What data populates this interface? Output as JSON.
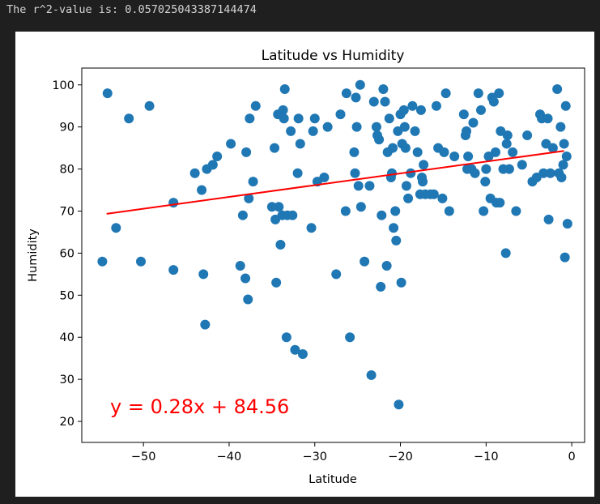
{
  "output": {
    "text": "The r^2-value is: 0.057025043387144474"
  },
  "colors": {
    "background": "#1f1f1f",
    "figure": "#ffffff",
    "points": "#1f77b4",
    "regression_line": "#ff0000",
    "equation": "#ff0000"
  },
  "chart_data": {
    "type": "scatter",
    "title": "Latitude vs Humidity",
    "xlabel": "Latitude",
    "ylabel": "Humidity",
    "xlim": [
      -57.2,
      1.5
    ],
    "ylim": [
      15,
      104
    ],
    "xticks": [
      -50,
      -40,
      -30,
      -20,
      -10,
      0
    ],
    "xtick_labels": [
      "−50",
      "−40",
      "−30",
      "−20",
      "−10",
      "0"
    ],
    "yticks": [
      20,
      30,
      40,
      50,
      60,
      70,
      80,
      90,
      100
    ],
    "ytick_labels": [
      "20",
      "30",
      "40",
      "50",
      "60",
      "70",
      "80",
      "90",
      "100"
    ],
    "grid": false,
    "equation": "y = 0.28x + 84.56",
    "regression": {
      "slope": 0.28,
      "intercept": 84.56,
      "x_range": [
        -54.3,
        -0.9
      ]
    },
    "points": [
      [
        -54.8,
        58
      ],
      [
        -54.2,
        98
      ],
      [
        -53.2,
        66
      ],
      [
        -51.7,
        92
      ],
      [
        -50.3,
        58
      ],
      [
        -49.3,
        95
      ],
      [
        -46.5,
        72
      ],
      [
        -46.5,
        56
      ],
      [
        -44.0,
        79
      ],
      [
        -43.2,
        75
      ],
      [
        -43.0,
        55
      ],
      [
        -42.8,
        43
      ],
      [
        -42.6,
        80
      ],
      [
        -41.9,
        81
      ],
      [
        -41.4,
        83
      ],
      [
        -39.8,
        86
      ],
      [
        -38.7,
        57
      ],
      [
        -38.4,
        69
      ],
      [
        -38.1,
        54
      ],
      [
        -38.0,
        84
      ],
      [
        -37.8,
        49
      ],
      [
        -37.7,
        73
      ],
      [
        -37.6,
        92
      ],
      [
        -37.2,
        77
      ],
      [
        -36.9,
        95
      ],
      [
        -35.0,
        71
      ],
      [
        -34.7,
        85
      ],
      [
        -34.6,
        68
      ],
      [
        -34.5,
        53
      ],
      [
        -34.3,
        93
      ],
      [
        -34.2,
        71
      ],
      [
        -34.0,
        62
      ],
      [
        -33.8,
        69
      ],
      [
        -33.7,
        94
      ],
      [
        -33.6,
        92
      ],
      [
        -33.5,
        99
      ],
      [
        -33.3,
        40
      ],
      [
        -33.2,
        69
      ],
      [
        -32.8,
        89
      ],
      [
        -32.6,
        69
      ],
      [
        -32.3,
        37
      ],
      [
        -32.0,
        79
      ],
      [
        -31.9,
        92
      ],
      [
        -31.7,
        86
      ],
      [
        -31.4,
        36
      ],
      [
        -30.4,
        66
      ],
      [
        -30.2,
        89
      ],
      [
        -30.0,
        92
      ],
      [
        -29.7,
        77
      ],
      [
        -28.9,
        78
      ],
      [
        -28.5,
        90
      ],
      [
        -27.5,
        55
      ],
      [
        -27.0,
        93
      ],
      [
        -26.4,
        70
      ],
      [
        -26.3,
        98
      ],
      [
        -25.9,
        40
      ],
      [
        -25.4,
        84
      ],
      [
        -25.3,
        79
      ],
      [
        -25.2,
        97
      ],
      [
        -25.1,
        90
      ],
      [
        -24.9,
        76
      ],
      [
        -24.7,
        100
      ],
      [
        -24.6,
        71
      ],
      [
        -24.2,
        58
      ],
      [
        -23.6,
        76
      ],
      [
        -23.4,
        31
      ],
      [
        -23.1,
        96
      ],
      [
        -22.8,
        90
      ],
      [
        -22.7,
        88
      ],
      [
        -22.5,
        87
      ],
      [
        -22.3,
        52
      ],
      [
        -22.2,
        69
      ],
      [
        -22.0,
        99
      ],
      [
        -21.8,
        96
      ],
      [
        -21.6,
        57
      ],
      [
        -21.5,
        84
      ],
      [
        -21.3,
        92
      ],
      [
        -21.1,
        78
      ],
      [
        -21.0,
        79
      ],
      [
        -20.9,
        85
      ],
      [
        -20.8,
        66
      ],
      [
        -20.6,
        70
      ],
      [
        -20.5,
        63
      ],
      [
        -20.3,
        89
      ],
      [
        -20.2,
        24
      ],
      [
        -20.0,
        93
      ],
      [
        -19.9,
        53
      ],
      [
        -19.8,
        86
      ],
      [
        -19.6,
        94
      ],
      [
        -19.5,
        90
      ],
      [
        -19.4,
        85
      ],
      [
        -19.3,
        76
      ],
      [
        -19.1,
        73
      ],
      [
        -18.8,
        79
      ],
      [
        -18.6,
        95
      ],
      [
        -18.3,
        89
      ],
      [
        -18.0,
        84
      ],
      [
        -17.7,
        74
      ],
      [
        -17.6,
        94
      ],
      [
        -17.5,
        78
      ],
      [
        -17.4,
        77
      ],
      [
        -17.3,
        81
      ],
      [
        -17.1,
        74
      ],
      [
        -16.5,
        74
      ],
      [
        -16.1,
        74
      ],
      [
        -15.8,
        95
      ],
      [
        -15.6,
        85
      ],
      [
        -15.1,
        73
      ],
      [
        -14.9,
        84
      ],
      [
        -14.7,
        98
      ],
      [
        -14.3,
        70
      ],
      [
        -13.7,
        83
      ],
      [
        -12.6,
        93
      ],
      [
        -12.4,
        88
      ],
      [
        -12.3,
        89
      ],
      [
        -12.2,
        80
      ],
      [
        -12.1,
        83
      ],
      [
        -11.7,
        80
      ],
      [
        -11.5,
        91
      ],
      [
        -11.3,
        79
      ],
      [
        -10.9,
        98
      ],
      [
        -10.6,
        94
      ],
      [
        -10.3,
        70
      ],
      [
        -10.1,
        77
      ],
      [
        -10.0,
        80
      ],
      [
        -9.7,
        83
      ],
      [
        -9.5,
        73
      ],
      [
        -9.3,
        97
      ],
      [
        -9.1,
        96
      ],
      [
        -8.9,
        84
      ],
      [
        -8.8,
        72
      ],
      [
        -8.5,
        98
      ],
      [
        -8.4,
        72
      ],
      [
        -8.3,
        89
      ],
      [
        -8.0,
        80
      ],
      [
        -7.7,
        60
      ],
      [
        -7.6,
        86
      ],
      [
        -7.5,
        88
      ],
      [
        -7.3,
        80
      ],
      [
        -6.9,
        84
      ],
      [
        -6.5,
        70
      ],
      [
        -5.8,
        81
      ],
      [
        -5.2,
        88
      ],
      [
        -4.6,
        77
      ],
      [
        -4.1,
        78
      ],
      [
        -3.7,
        93
      ],
      [
        -3.5,
        92
      ],
      [
        -3.3,
        79
      ],
      [
        -3.0,
        86
      ],
      [
        -2.8,
        92
      ],
      [
        -2.7,
        68
      ],
      [
        -2.5,
        79
      ],
      [
        -2.2,
        85
      ],
      [
        -1.7,
        99
      ],
      [
        -1.5,
        79
      ],
      [
        -1.3,
        90
      ],
      [
        -1.2,
        78
      ],
      [
        -1.0,
        81
      ],
      [
        -0.9,
        86
      ],
      [
        -0.8,
        59
      ],
      [
        -0.7,
        95
      ],
      [
        -0.6,
        83
      ],
      [
        -0.5,
        67
      ]
    ]
  }
}
